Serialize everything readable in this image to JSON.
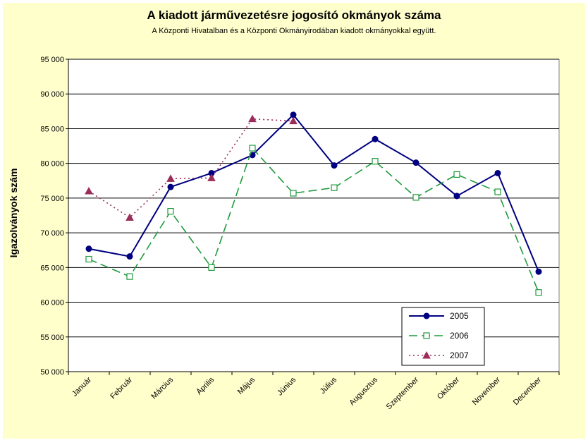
{
  "chart_data": {
    "type": "line",
    "title": "A  kiadott járművezetésre  jogosító okmányok száma",
    "subtitle": "A  Központi Hivatalban és a Központi Okmányirodában kiadott okmányokkal együtt.",
    "xlabel": "",
    "ylabel": "Igazolványok szám",
    "ylim": [
      50000,
      95000
    ],
    "ytick_labels": [
      "50 000",
      "55 000",
      "60 000",
      "65 000",
      "70 000",
      "75 000",
      "80 000",
      "85 000",
      "90 000",
      "95 000"
    ],
    "ytick_values": [
      50000,
      55000,
      60000,
      65000,
      70000,
      75000,
      80000,
      85000,
      90000,
      95000
    ],
    "categories": [
      "Január",
      "Február",
      "Március",
      "Április",
      "Május",
      "Június",
      "Július",
      "Augusztus",
      "Szeptember",
      "Október",
      "November",
      "December"
    ],
    "grid": true,
    "legend_position": "bottom-right",
    "series": [
      {
        "name": "2005",
        "color": "#000080",
        "style": "solid",
        "marker": "circle",
        "values": [
          67700,
          66600,
          76600,
          78600,
          81200,
          87000,
          79700,
          83500,
          80100,
          75300,
          78600,
          64400
        ]
      },
      {
        "name": "2006",
        "color": "#1f9a3c",
        "style": "dashed",
        "marker": "square-open",
        "values": [
          66200,
          63700,
          73100,
          65000,
          82200,
          75700,
          76500,
          80300,
          75100,
          78400,
          75900,
          61400
        ]
      },
      {
        "name": "2007",
        "color": "#9b2d5a",
        "style": "dotted",
        "marker": "triangle",
        "values": [
          76000,
          72200,
          77800,
          77900,
          86400,
          86100,
          null,
          null,
          null,
          null,
          null,
          null
        ]
      }
    ]
  },
  "colors": {
    "background": "#ffffcc",
    "plot_background": "#ffffff",
    "gridline": "#000000"
  }
}
